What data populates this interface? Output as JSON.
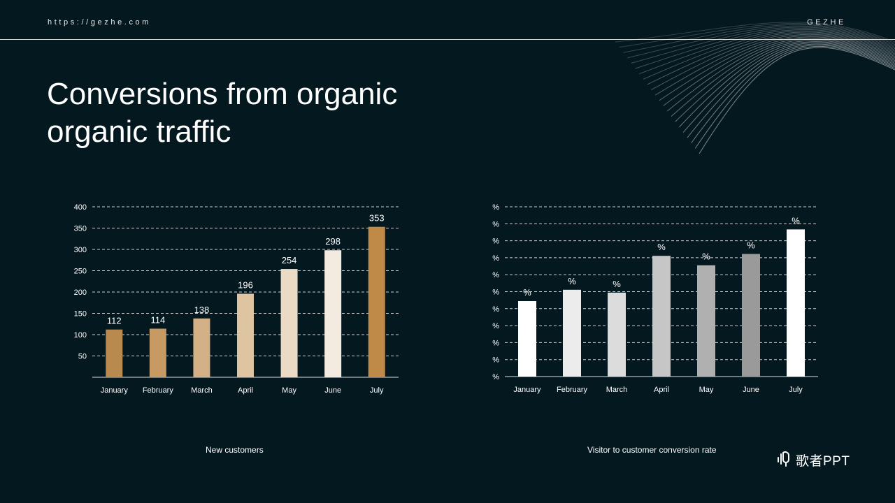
{
  "header": {
    "site_url": "https://gezhe.com",
    "brand": "GEZHE"
  },
  "title": "Conversions from organic organic traffic",
  "captions": {
    "left": "New customers",
    "right": "Visitor to customer conversion  rate"
  },
  "logo": {
    "text": "歌者PPT",
    "icon": "microphone-wave-icon"
  },
  "colors": {
    "background": "#041820",
    "grid": "#d0d0d0",
    "bar_left": [
      "#b98a4e",
      "#c69a62",
      "#d4b086",
      "#dfc4a2",
      "#ebdbc4",
      "#f3ebe0",
      "#bf8a48"
    ],
    "bar_right": [
      "#ffffff",
      "#ececec",
      "#dcdcdc",
      "#c6c6c6",
      "#b0b0b0",
      "#9a9a9a",
      "#ffffff"
    ]
  },
  "chart_data": [
    {
      "type": "bar",
      "categories": [
        "January",
        "February",
        "March",
        "April",
        "May",
        "June",
        "July"
      ],
      "values": [
        112,
        114,
        138,
        196,
        254,
        298,
        353
      ],
      "data_labels": [
        "112",
        "114",
        "138",
        "196",
        "254",
        "298",
        "353"
      ],
      "y_ticks": [
        "50",
        "100",
        "150",
        "200",
        "250",
        "300",
        "350",
        "400"
      ],
      "ylim": [
        0,
        400
      ],
      "grid": true,
      "legend": "none"
    },
    {
      "type": "bar",
      "categories": [
        "January",
        "February",
        "March",
        "April",
        "May",
        "June",
        "July"
      ],
      "values": [
        4.0,
        4.6,
        4.45,
        6.4,
        5.9,
        6.5,
        7.8
      ],
      "data_labels": [
        "%",
        "%",
        "%",
        "%",
        "%",
        "%",
        "%"
      ],
      "y_ticks": [
        "%",
        "%",
        "%",
        "%",
        "%",
        "%",
        "%",
        "%",
        "%",
        "%"
      ],
      "ylim": [
        0,
        9
      ],
      "grid": true,
      "legend": "none"
    }
  ]
}
